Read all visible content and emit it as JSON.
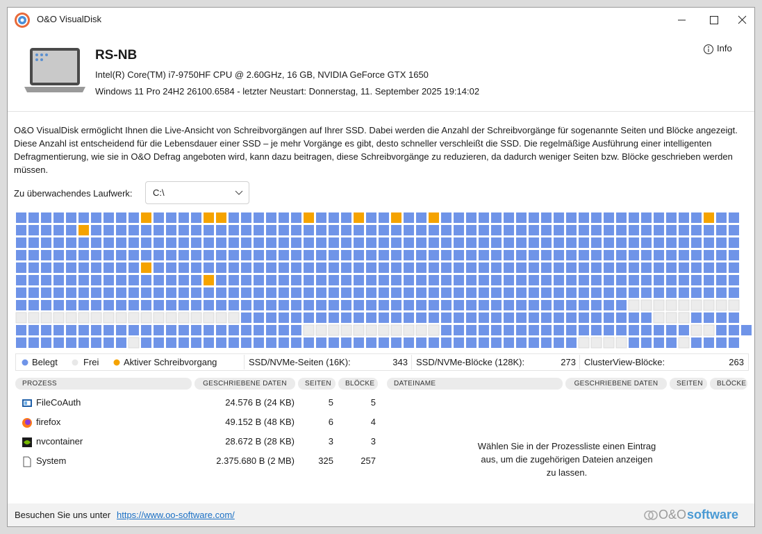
{
  "window": {
    "title": "O&O VisualDisk",
    "info": "Info"
  },
  "machine": {
    "name": "RS-NB",
    "hardware": "Intel(R) Core(TM) i7-9750HF CPU @ 2.60GHz, 16 GB, NVIDIA GeForce GTX 1650",
    "os": "Windows 11 Pro 24H2 26100.6584 - letzter Neustart: Donnerstag, 11. September 2025 19:14:02"
  },
  "description": "O&O VisualDisk ermöglicht Ihnen die Live-Ansicht von Schreibvorgängen auf Ihrer SSD. Dabei werden die Anzahl der Schreibvorgänge für sogenannte Seiten und Blöcke angezeigt. Diese Anzahl ist entscheidend für die Lebensdauer einer SSD – je mehr Vorgänge es gibt, desto schneller verschleißt die SSD. Die regelmäßige Ausführung einer intelligenten Defragmentierung, wie sie in O&O Defrag angeboten wird, kann dazu beitragen, diese Schreibvorgänge zu reduzieren, da dadurch weniger Seiten bzw. Blöcke geschrieben werden müssen.",
  "drive": {
    "label": "Zu überwachendes Laufwerk:",
    "value": "C:\\"
  },
  "block_map": [
    "uuuuuuuuuuauuuuaauuuuuuauuuauuauuauuuuuuuuuuuuuuuuuuuuuauu",
    "uuuuuauuuuuuuuuuuuuuuuuuuuuuuuuuuuuuuuuuuuuuuuuuuuuuuuuuuu",
    "uuuuuuuuuuuuuuuuuuuuuuuuuuuuuuuuuuuuuuuuuuuuuuuuuuuuuuuuuu",
    "uuuuuuuuuuuuuuuuuuuuuuuuuuuuuuuuuuuuuuuuuuuuuuuuuuuuuuuuuu",
    "uuuuuuuuuuauuuuuuuuuuuuuuuuuuuuuuuuuuuuuuuuuuuuuuuuuuuuuuu",
    "uuuuuuuuuuuuuuuauuuuuuuuuuuuuuuuuuuuuuuuuuuuuuuuuuuuuuuuuu",
    "uuuuuuuuuuuuuuuuuuuuuuuuuuuuuuuuuuuuuuuuuuuuuuuuuuuuuuuuuu",
    "uuuuuuuuuuuuuuuuuuuuuuuuuuuuuuuuuuuuuuuuuuuuuuuuufffffffff",
    "ffffffffffffffffffuuuuuuuuuuuuuuuuuuuuuuuuuuuuuuuuufffuuuu",
    "uuuuuuuuuuuuuuuuuuuuuuufffffffffffuuuuuuuuuuuuuuuuuuuuffuuu",
    "uuuuuuuuufuuuuuuuuuuuuuuuuuuuuuuuuuuuuuuuuuuuffffuuuufuuuu"
  ],
  "legend": {
    "used": "Belegt",
    "free": "Frei",
    "active": "Aktiver Schreibvorgang"
  },
  "stats": [
    {
      "label": "SSD/NVMe-Seiten (16K):",
      "value": 343
    },
    {
      "label": "SSD/NVMe-Blöcke (128K):",
      "value": 273
    },
    {
      "label": "ClusterView-Blöcke:",
      "value": 263
    }
  ],
  "process_table": {
    "headers": [
      "PROZESS",
      "GESCHRIEBENE DATEN",
      "SEITEN",
      "BLÖCKE"
    ],
    "rows": [
      [
        "FileCoAuth",
        "24.576 B (24 KB)",
        5,
        5
      ],
      [
        "firefox",
        "49.152 B (48 KB)",
        6,
        4
      ],
      [
        "nvcontainer",
        "28.672 B (28 KB)",
        3,
        3
      ],
      [
        "System",
        "2.375.680 B (2 MB)",
        325,
        257
      ]
    ]
  },
  "file_table": {
    "headers": [
      "DATEINAME",
      "GESCHRIEBENE DATEN",
      "SEITEN",
      "BLÖCKE"
    ],
    "empty_message": "Wählen Sie in der Prozessliste einen Eintrag aus, um die zugehörigen Dateien anzeigen zu lassen."
  },
  "footer": {
    "text": "Besuchen Sie uns unter",
    "link": "https://www.oo-software.com/",
    "brand_prefix": "O&O",
    "brand": "software"
  }
}
